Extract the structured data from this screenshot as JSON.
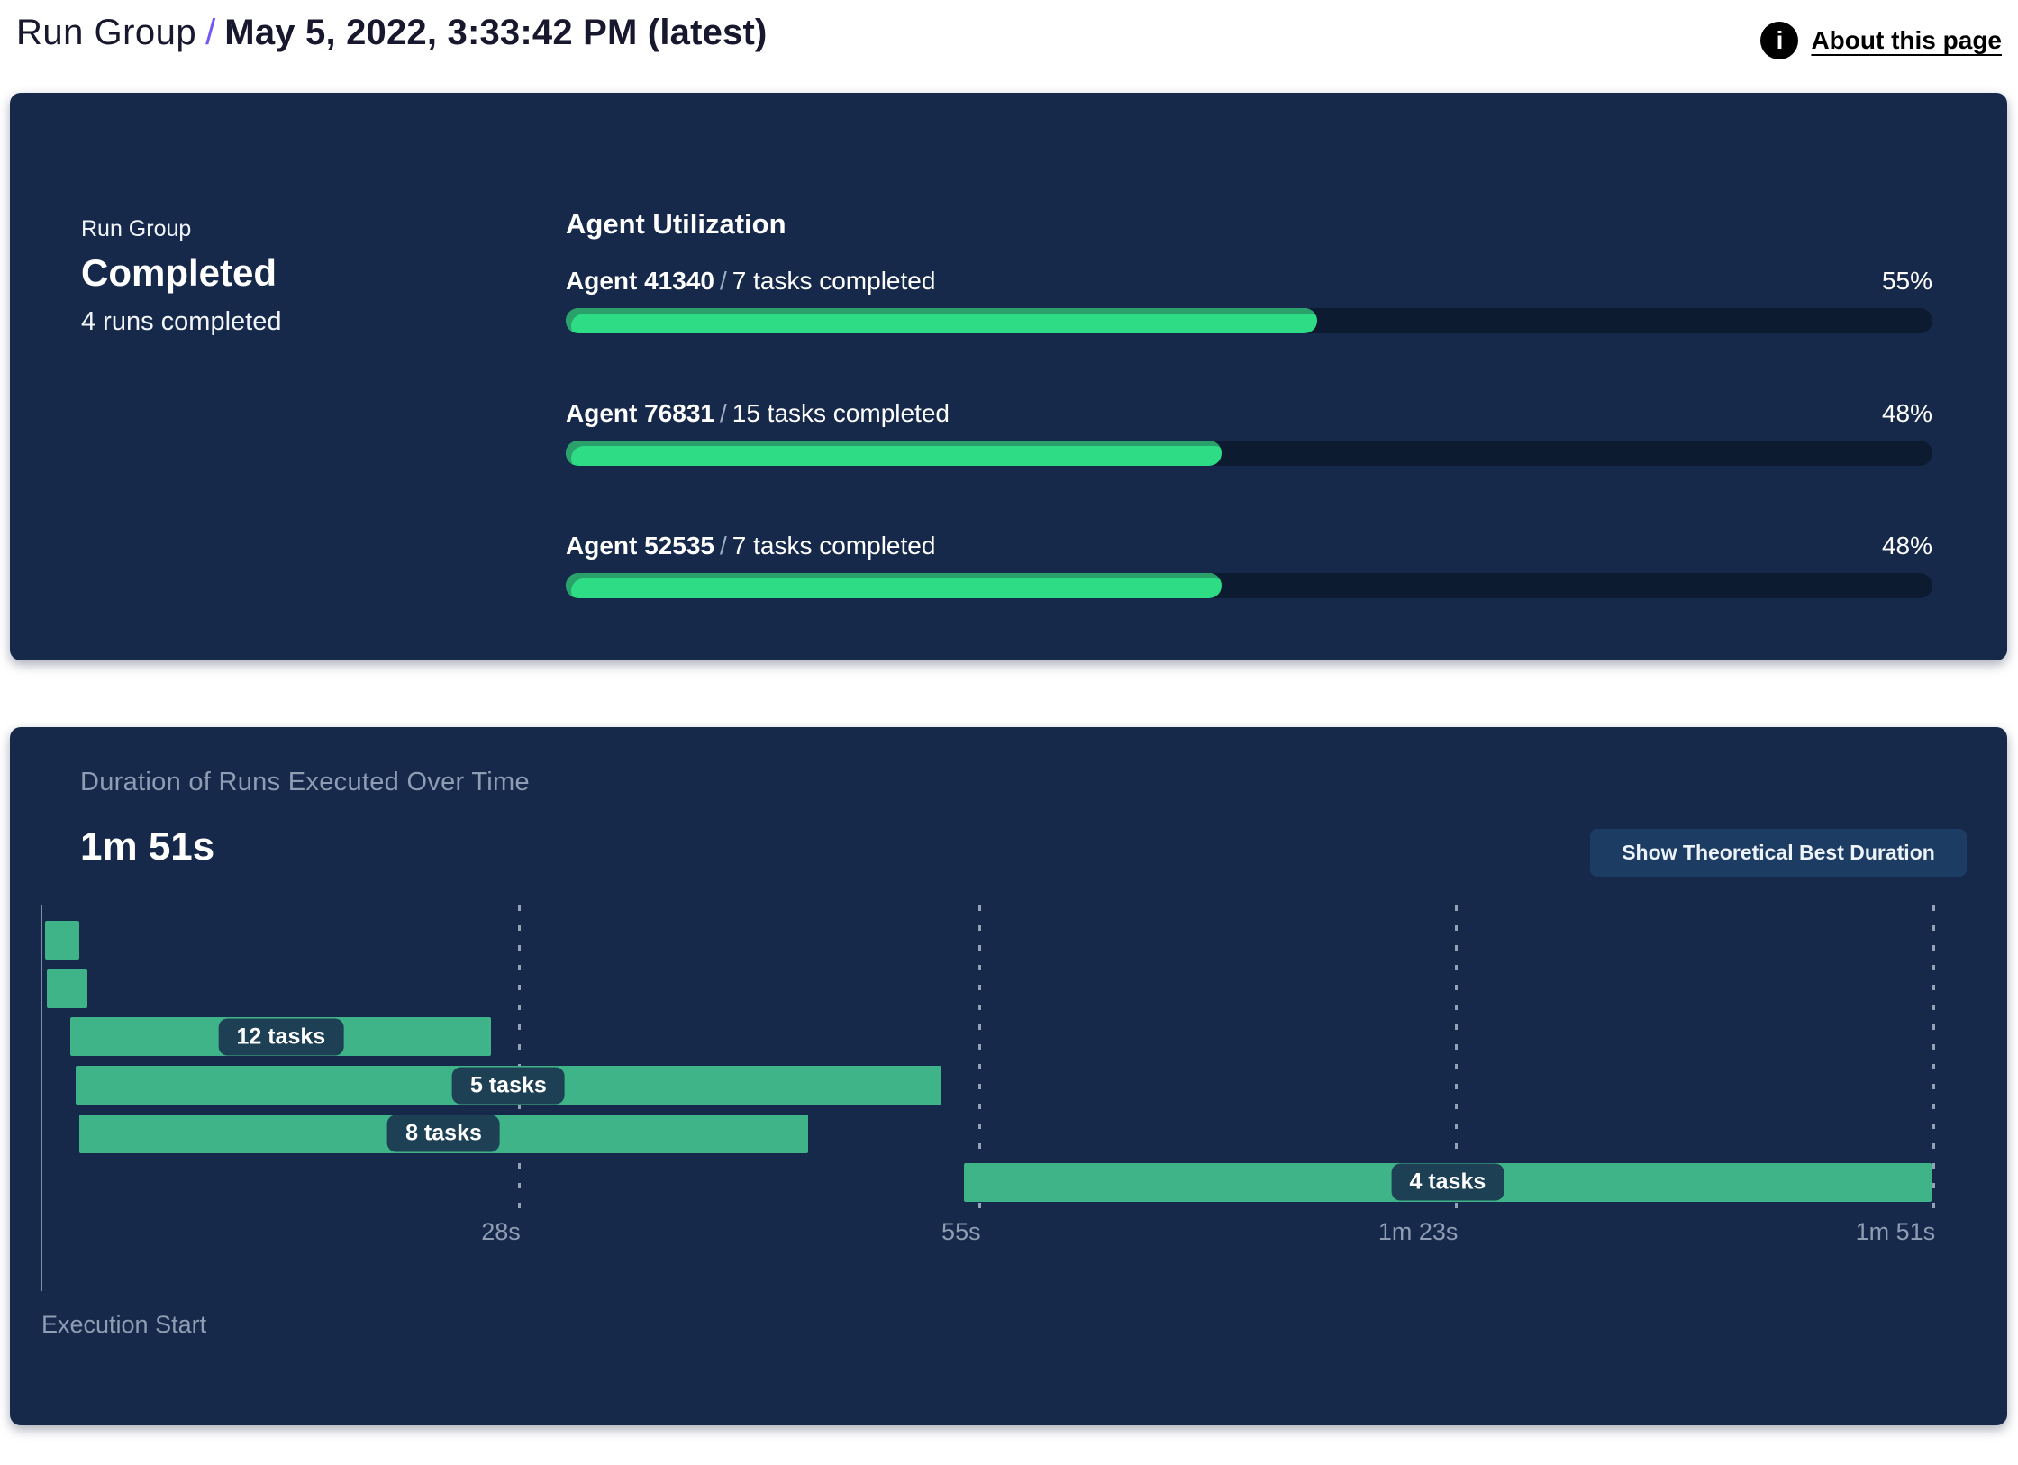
{
  "header": {
    "breadcrumb": "Run Group",
    "separator": "/",
    "title": "May 5, 2022, 3:33:42 PM (latest)",
    "info_icon_glyph": "i",
    "about_link": "About this page"
  },
  "colors": {
    "panel_bg": "#16294a",
    "accent_purple": "#7356f6",
    "progress_fill_green": "#2edc86",
    "progress_fill_edge_green": "#2aa06a",
    "progress_track": "#0d1b30",
    "gantt_bar_green": "#3eb488",
    "muted_text": "#8e9db3",
    "task_pill_bg": "#1d4055",
    "button_bg": "#1d3c63"
  },
  "run_group_panel": {
    "card_label": "Run Group",
    "status": "Completed",
    "runs_summary": "4 runs completed",
    "section_title": "Agent Utilization",
    "slash": "/",
    "agents": [
      {
        "name": "Agent 41340",
        "tasks": "7 tasks completed",
        "utilization_pct": 55,
        "pct_label": "55%"
      },
      {
        "name": "Agent 76831",
        "tasks": "15 tasks completed",
        "utilization_pct": 48,
        "pct_label": "48%"
      },
      {
        "name": "Agent 52535",
        "tasks": "7 tasks completed",
        "utilization_pct": 48,
        "pct_label": "48%"
      }
    ]
  },
  "duration_panel": {
    "title": "Duration of Runs Executed Over Time",
    "total_duration": "1m 51s",
    "button_label": "Show Theoretical Best Duration",
    "axis_label": "Execution Start",
    "chart_data": {
      "type": "gantt",
      "x_unit": "seconds",
      "x_range": [
        0,
        111
      ],
      "grid": true,
      "x_ticks": [
        {
          "t": 28,
          "label": "28s"
        },
        {
          "t": 55,
          "label": "55s"
        },
        {
          "t": 83,
          "label": "1m 23s"
        },
        {
          "t": 111,
          "label": "1m 51s"
        }
      ],
      "runs": [
        {
          "start_s": 0.2,
          "end_s": 2.2,
          "label": ""
        },
        {
          "start_s": 0.3,
          "end_s": 2.7,
          "label": ""
        },
        {
          "start_s": 1.7,
          "end_s": 26.4,
          "label": "12 tasks"
        },
        {
          "start_s": 2.0,
          "end_s": 52.8,
          "label": "5 tasks"
        },
        {
          "start_s": 2.2,
          "end_s": 45.0,
          "label": "8 tasks"
        },
        {
          "start_s": 54.1,
          "end_s": 110.9,
          "label": "4 tasks"
        }
      ]
    }
  }
}
